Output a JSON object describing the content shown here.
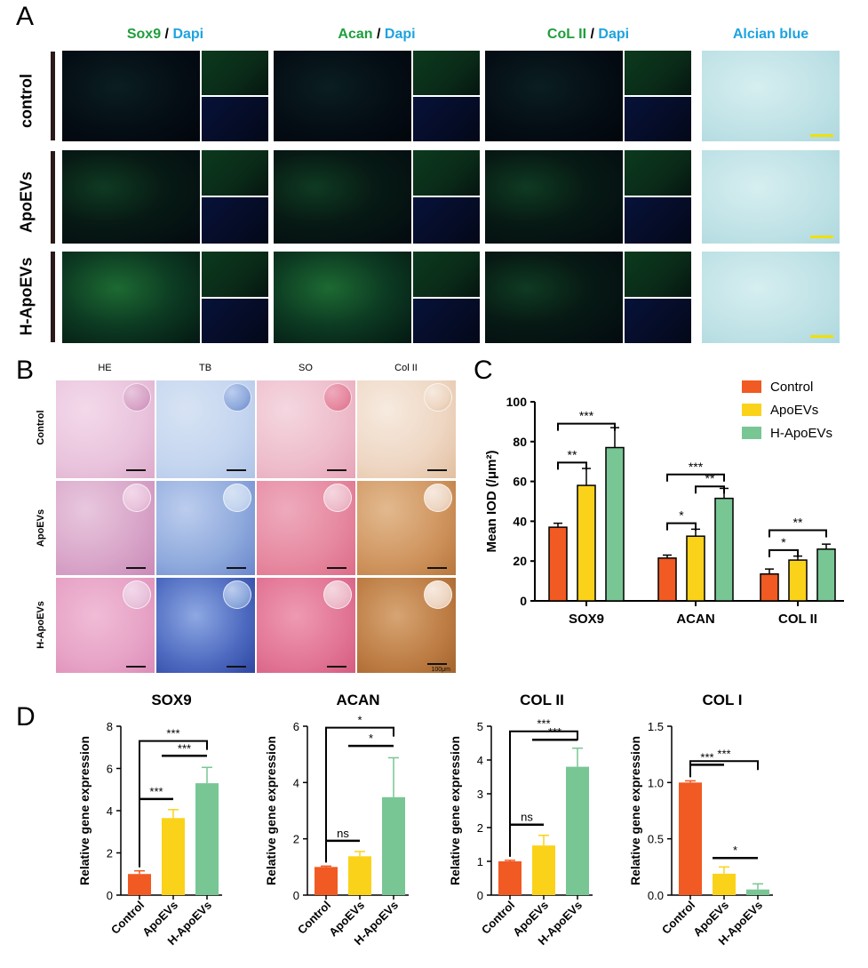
{
  "panel_labels": [
    "A",
    "B",
    "C",
    "D"
  ],
  "panelA": {
    "columns": [
      {
        "marker": "Sox9",
        "sep": " / ",
        "stain": "Dapi"
      },
      {
        "marker": "Acan",
        "sep": " / ",
        "stain": "Dapi"
      },
      {
        "marker": "CoL II",
        "sep": " / ",
        "stain": "Dapi"
      },
      {
        "marker": "Alcian blue"
      }
    ],
    "rows": [
      "control",
      "ApoEVs",
      "H-ApoEVs"
    ]
  },
  "panelB": {
    "columns": [
      "HE",
      "TB",
      "SO",
      "Col II"
    ],
    "rows": [
      "Control",
      "ApoEVs",
      "H-ApoEVs"
    ],
    "scale_label": "100μm"
  },
  "colors": {
    "control": "#f15a22",
    "apoevs": "#fbd21a",
    "h_apoevs": "#78c694",
    "green_text": "#1f9e3c",
    "blue_text": "#1ea3df"
  },
  "chart_data": [
    {
      "type": "bar",
      "panel": "C",
      "categories": [
        "SOX9",
        "ACAN",
        "COL II"
      ],
      "ylabel": "Mean IOD (/μm²)",
      "ylim": [
        0,
        100
      ],
      "yticks": [
        0,
        20,
        40,
        60,
        80,
        100
      ],
      "legend_position": "top-right",
      "series": [
        {
          "name": "Control",
          "values": [
            37,
            21.5,
            13.5
          ],
          "errors": [
            2,
            1.5,
            2.5
          ]
        },
        {
          "name": "ApoEVs",
          "values": [
            58,
            32.5,
            20.5
          ],
          "errors": [
            8.5,
            3.5,
            2
          ]
        },
        {
          "name": "H-ApoEVs",
          "values": [
            77,
            51.5,
            26
          ],
          "errors": [
            10,
            5,
            2.5
          ]
        }
      ],
      "significance": [
        {
          "group": 0,
          "from": 0,
          "to": 2,
          "label": "***"
        },
        {
          "group": 0,
          "from": 0,
          "to": 1,
          "label": "**"
        },
        {
          "group": 1,
          "from": 0,
          "to": 2,
          "label": "***"
        },
        {
          "group": 1,
          "from": 1,
          "to": 2,
          "label": "**"
        },
        {
          "group": 1,
          "from": 0,
          "to": 1,
          "label": "*"
        },
        {
          "group": 2,
          "from": 0,
          "to": 2,
          "label": "**"
        },
        {
          "group": 2,
          "from": 0,
          "to": 1,
          "label": "*"
        }
      ]
    },
    {
      "type": "bar",
      "panel": "D",
      "title": "SOX9",
      "categories": [
        "Control",
        "ApoEVs",
        "H-ApoEVs"
      ],
      "values": [
        1.0,
        3.65,
        5.3
      ],
      "errors": [
        0.15,
        0.4,
        0.75
      ],
      "ylabel": "Relative gene expression",
      "ylim": [
        0,
        8
      ],
      "yticks": [
        "0",
        "2",
        "4",
        "6",
        "8"
      ],
      "significance": [
        {
          "from": 0,
          "to": 2,
          "label": "***"
        },
        {
          "from": 1,
          "to": 2,
          "label": "***"
        },
        {
          "from": 0,
          "to": 1,
          "label": "***"
        }
      ]
    },
    {
      "type": "bar",
      "panel": "D",
      "title": "ACAN",
      "categories": [
        "Control",
        "ApoEVs",
        "H-ApoEVs"
      ],
      "values": [
        1.0,
        1.38,
        3.48
      ],
      "errors": [
        0.03,
        0.17,
        1.4
      ],
      "ylabel": "Relative gene expression",
      "ylim": [
        0,
        6
      ],
      "yticks": [
        "0",
        "2",
        "4",
        "6"
      ],
      "significance": [
        {
          "from": 0,
          "to": 2,
          "label": "*"
        },
        {
          "from": 1,
          "to": 2,
          "label": "*"
        },
        {
          "from": 0,
          "to": 1,
          "label": "ns"
        }
      ]
    },
    {
      "type": "bar",
      "panel": "D",
      "title": "COL II",
      "categories": [
        "Control",
        "ApoEVs",
        "H-ApoEVs"
      ],
      "values": [
        1.0,
        1.47,
        3.8
      ],
      "errors": [
        0.03,
        0.3,
        0.55
      ],
      "ylabel": "Relative gene expression",
      "ylim": [
        0,
        5
      ],
      "yticks": [
        "0",
        "1",
        "2",
        "3",
        "4",
        "5"
      ],
      "significance": [
        {
          "from": 0,
          "to": 2,
          "label": "***"
        },
        {
          "from": 1,
          "to": 2,
          "label": "***"
        },
        {
          "from": 0,
          "to": 1,
          "label": "ns"
        }
      ]
    },
    {
      "type": "bar",
      "panel": "D",
      "title": "COL I",
      "categories": [
        "Control",
        "ApoEVs",
        "H-ApoEVs"
      ],
      "values": [
        1.0,
        0.19,
        0.05
      ],
      "errors": [
        0.015,
        0.06,
        0.05
      ],
      "ylabel": "Relative gene expression",
      "ylim": [
        0,
        1.5
      ],
      "yticks": [
        "0.0",
        "0.5",
        "1.0",
        "1.5"
      ],
      "significance": [
        {
          "from": 0,
          "to": 2,
          "label": "***"
        },
        {
          "from": 0,
          "to": 1,
          "label": "***"
        },
        {
          "from": 1,
          "to": 2,
          "label": "*"
        }
      ]
    }
  ]
}
